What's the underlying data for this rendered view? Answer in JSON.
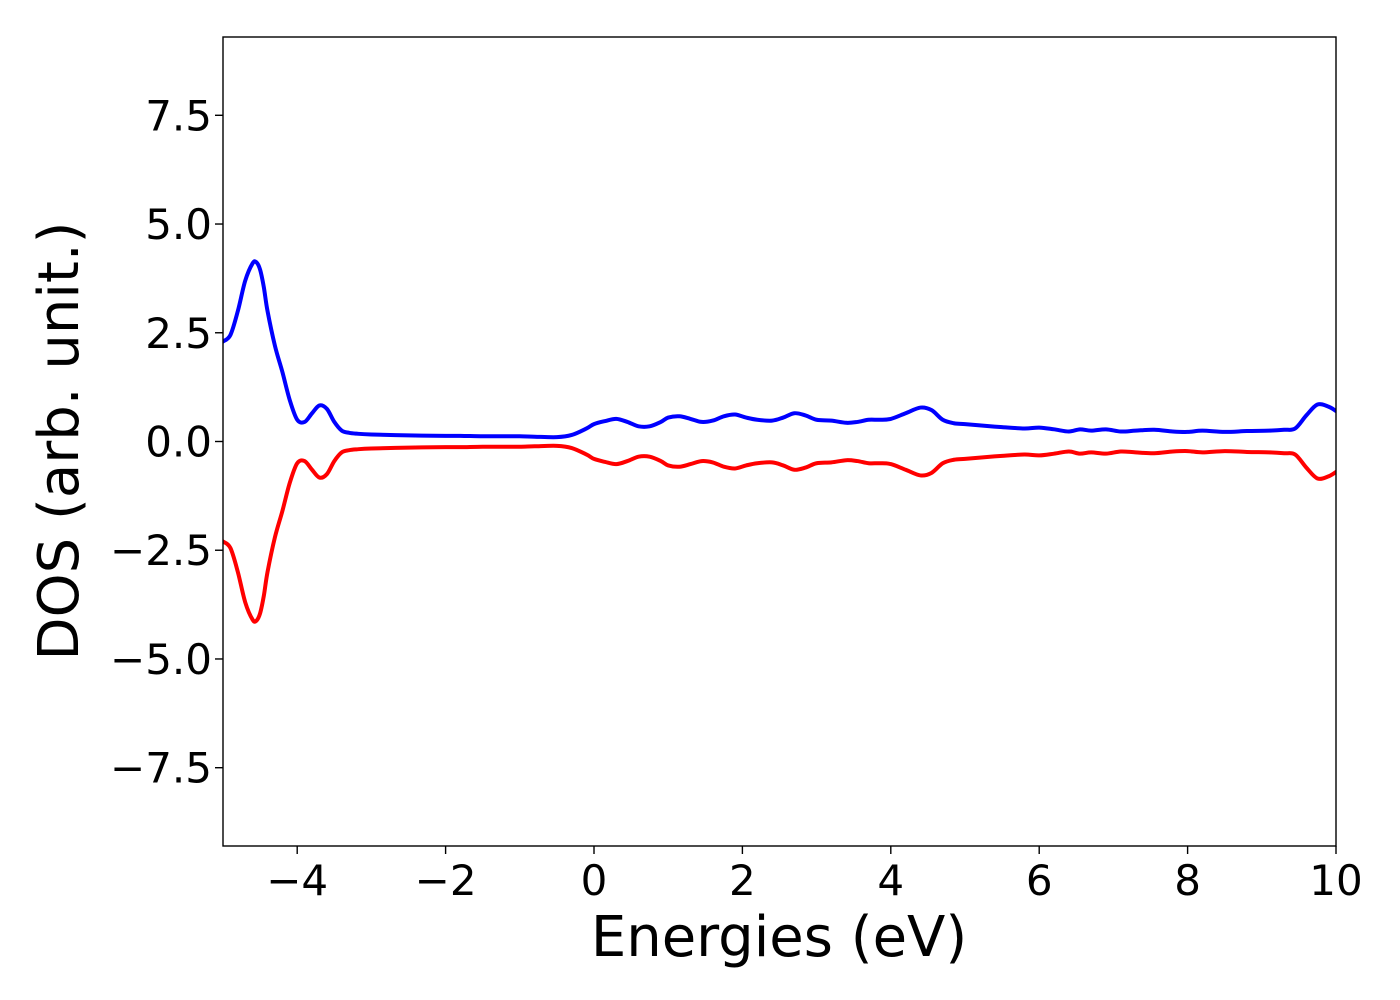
{
  "chart_data": {
    "type": "line",
    "title": "",
    "xlabel": "Energies (eV)",
    "ylabel": "DOS (arb. unit.)",
    "xlim": [
      -5,
      10
    ],
    "ylim": [
      -9.3,
      9.3
    ],
    "grid": false,
    "legend": "none",
    "xticks": [
      -4,
      -2,
      0,
      2,
      4,
      6,
      8,
      10
    ],
    "xtick_labels": [
      "−4",
      "−2",
      "0",
      "2",
      "4",
      "6",
      "8",
      "10"
    ],
    "yticks": [
      7.5,
      5.0,
      2.5,
      0.0,
      -2.5,
      -5.0,
      -7.5
    ],
    "ytick_labels": [
      "7.5",
      "5.0",
      "2.5",
      "0.0",
      "−2.5",
      "−5.0",
      "−7.5"
    ],
    "series": [
      {
        "color": "#0000ff",
        "x": [
          -5.0,
          -4.9,
          -4.8,
          -4.7,
          -4.6,
          -4.55,
          -4.5,
          -4.45,
          -4.4,
          -4.3,
          -4.2,
          -4.1,
          -4.0,
          -3.9,
          -3.8,
          -3.7,
          -3.6,
          -3.5,
          -3.4,
          -3.3,
          -3.2,
          -3.0,
          -2.5,
          -2.0,
          -1.8,
          -1.5,
          -1.2,
          -1.0,
          -0.8,
          -0.5,
          -0.3,
          -0.1,
          0.0,
          0.15,
          0.3,
          0.45,
          0.6,
          0.75,
          0.9,
          1.0,
          1.15,
          1.3,
          1.45,
          1.6,
          1.75,
          1.9,
          2.05,
          2.2,
          2.4,
          2.55,
          2.7,
          2.85,
          3.0,
          3.2,
          3.4,
          3.55,
          3.7,
          3.85,
          4.0,
          4.2,
          4.4,
          4.55,
          4.7,
          4.85,
          5.0,
          5.2,
          5.5,
          5.8,
          6.0,
          6.2,
          6.4,
          6.55,
          6.7,
          6.9,
          7.1,
          7.3,
          7.55,
          7.8,
          8.0,
          8.2,
          8.5,
          8.8,
          9.1,
          9.3,
          9.45,
          9.6,
          9.75,
          9.9,
          10.0
        ],
        "values": [
          2.3,
          2.45,
          3.0,
          3.7,
          4.1,
          4.12,
          3.95,
          3.55,
          3.0,
          2.2,
          1.6,
          0.95,
          0.5,
          0.45,
          0.65,
          0.83,
          0.75,
          0.45,
          0.25,
          0.2,
          0.18,
          0.16,
          0.14,
          0.13,
          0.13,
          0.12,
          0.12,
          0.12,
          0.11,
          0.1,
          0.15,
          0.3,
          0.4,
          0.47,
          0.52,
          0.45,
          0.35,
          0.35,
          0.45,
          0.55,
          0.58,
          0.52,
          0.45,
          0.48,
          0.58,
          0.62,
          0.55,
          0.5,
          0.48,
          0.55,
          0.65,
          0.6,
          0.5,
          0.48,
          0.43,
          0.45,
          0.5,
          0.5,
          0.52,
          0.65,
          0.78,
          0.72,
          0.5,
          0.42,
          0.4,
          0.37,
          0.33,
          0.3,
          0.32,
          0.28,
          0.23,
          0.28,
          0.25,
          0.28,
          0.23,
          0.25,
          0.27,
          0.23,
          0.22,
          0.25,
          0.22,
          0.24,
          0.25,
          0.27,
          0.3,
          0.6,
          0.85,
          0.8,
          0.7
        ]
      },
      {
        "color": "#ff0000",
        "x": [
          -5.0,
          -4.9,
          -4.8,
          -4.7,
          -4.6,
          -4.55,
          -4.5,
          -4.45,
          -4.4,
          -4.3,
          -4.2,
          -4.1,
          -4.0,
          -3.9,
          -3.8,
          -3.7,
          -3.6,
          -3.5,
          -3.4,
          -3.3,
          -3.2,
          -3.0,
          -2.5,
          -2.0,
          -1.8,
          -1.5,
          -1.2,
          -1.0,
          -0.8,
          -0.5,
          -0.3,
          -0.1,
          0.0,
          0.15,
          0.3,
          0.45,
          0.6,
          0.75,
          0.9,
          1.0,
          1.15,
          1.3,
          1.45,
          1.6,
          1.75,
          1.9,
          2.05,
          2.2,
          2.4,
          2.55,
          2.7,
          2.85,
          3.0,
          3.2,
          3.4,
          3.55,
          3.7,
          3.85,
          4.0,
          4.2,
          4.4,
          4.55,
          4.7,
          4.85,
          5.0,
          5.2,
          5.5,
          5.8,
          6.0,
          6.2,
          6.4,
          6.55,
          6.7,
          6.9,
          7.1,
          7.3,
          7.55,
          7.8,
          8.0,
          8.2,
          8.5,
          8.8,
          9.1,
          9.3,
          9.45,
          9.6,
          9.75,
          9.9,
          10.0
        ],
        "values": [
          -2.3,
          -2.45,
          -3.0,
          -3.7,
          -4.1,
          -4.12,
          -3.95,
          -3.55,
          -3.0,
          -2.2,
          -1.6,
          -0.95,
          -0.5,
          -0.45,
          -0.65,
          -0.83,
          -0.75,
          -0.45,
          -0.25,
          -0.2,
          -0.18,
          -0.16,
          -0.14,
          -0.13,
          -0.13,
          -0.12,
          -0.12,
          -0.12,
          -0.11,
          -0.1,
          -0.15,
          -0.3,
          -0.4,
          -0.47,
          -0.52,
          -0.45,
          -0.35,
          -0.35,
          -0.45,
          -0.55,
          -0.58,
          -0.52,
          -0.45,
          -0.48,
          -0.58,
          -0.62,
          -0.55,
          -0.5,
          -0.48,
          -0.55,
          -0.65,
          -0.6,
          -0.5,
          -0.48,
          -0.43,
          -0.45,
          -0.5,
          -0.5,
          -0.52,
          -0.65,
          -0.78,
          -0.72,
          -0.5,
          -0.42,
          -0.4,
          -0.37,
          -0.33,
          -0.3,
          -0.32,
          -0.28,
          -0.23,
          -0.28,
          -0.25,
          -0.28,
          -0.23,
          -0.25,
          -0.27,
          -0.23,
          -0.22,
          -0.25,
          -0.22,
          -0.24,
          -0.25,
          -0.27,
          -0.3,
          -0.6,
          -0.85,
          -0.8,
          -0.7
        ]
      }
    ]
  }
}
